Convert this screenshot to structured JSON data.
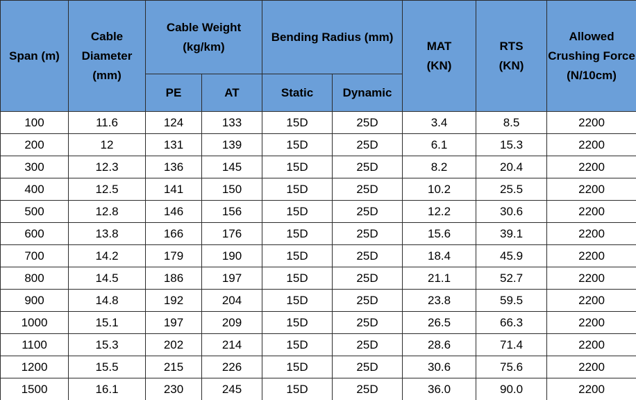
{
  "header": {
    "span": "Span (m)",
    "diameter": "Cable Diameter (mm)",
    "weight": {
      "label": "Cable Weight (kg/km)",
      "pe": "PE",
      "at": "AT"
    },
    "bending": {
      "label": "Bending Radius (mm)",
      "static": "Static",
      "dynamic": "Dynamic"
    },
    "mat": "MAT (KN)",
    "rts": "RTS (KN)",
    "crushing": "Allowed Crushing Force (N/10cm)"
  },
  "table": {
    "rows": [
      [
        "100",
        "11.6",
        "124",
        "133",
        "15D",
        "25D",
        "3.4",
        "8.5",
        "2200"
      ],
      [
        "200",
        "12",
        "131",
        "139",
        "15D",
        "25D",
        "6.1",
        "15.3",
        "2200"
      ],
      [
        "300",
        "12.3",
        "136",
        "145",
        "15D",
        "25D",
        "8.2",
        "20.4",
        "2200"
      ],
      [
        "400",
        "12.5",
        "141",
        "150",
        "15D",
        "25D",
        "10.2",
        "25.5",
        "2200"
      ],
      [
        "500",
        "12.8",
        "146",
        "156",
        "15D",
        "25D",
        "12.2",
        "30.6",
        "2200"
      ],
      [
        "600",
        "13.8",
        "166",
        "176",
        "15D",
        "25D",
        "15.6",
        "39.1",
        "2200"
      ],
      [
        "700",
        "14.2",
        "179",
        "190",
        "15D",
        "25D",
        "18.4",
        "45.9",
        "2200"
      ],
      [
        "800",
        "14.5",
        "186",
        "197",
        "15D",
        "25D",
        "21.1",
        "52.7",
        "2200"
      ],
      [
        "900",
        "14.8",
        "192",
        "204",
        "15D",
        "25D",
        "23.8",
        "59.5",
        "2200"
      ],
      [
        "1000",
        "15.1",
        "197",
        "209",
        "15D",
        "25D",
        "26.5",
        "66.3",
        "2200"
      ],
      [
        "1100",
        "15.3",
        "202",
        "214",
        "15D",
        "25D",
        "28.6",
        "71.4",
        "2200"
      ],
      [
        "1200",
        "15.5",
        "215",
        "226",
        "15D",
        "25D",
        "30.6",
        "75.6",
        "2200"
      ],
      [
        "1500",
        "16.1",
        "230",
        "245",
        "15D",
        "25D",
        "36.0",
        "90.0",
        "2200"
      ]
    ]
  }
}
